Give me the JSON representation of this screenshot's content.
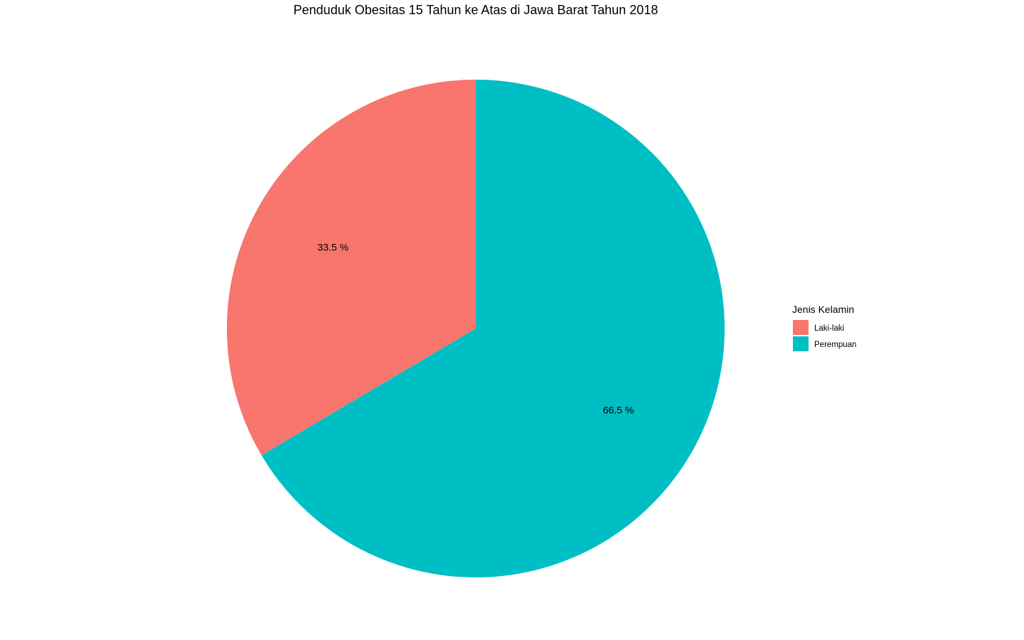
{
  "chart_data": {
    "type": "pie",
    "title": "Penduduk Obesitas 15 Tahun ke Atas di Jawa Barat Tahun 2018",
    "slices": [
      {
        "name": "Laki-laki",
        "value": 33.5,
        "label": "33.5 %",
        "color": "#F8766D"
      },
      {
        "name": "Perempuan",
        "value": 66.5,
        "label": "66.5 %",
        "color": "#00BFC4"
      }
    ],
    "legend": {
      "title": "Jenis Kelamin",
      "position": "right",
      "entries": [
        "Laki-laki",
        "Perempuan"
      ]
    },
    "start": "top",
    "direction": "counterclockwise-first-slice"
  }
}
